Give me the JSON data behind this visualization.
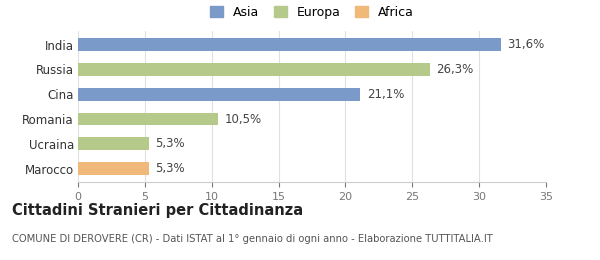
{
  "categories": [
    "Marocco",
    "Ucraina",
    "Romania",
    "Cina",
    "Russia",
    "India"
  ],
  "values": [
    5.3,
    5.3,
    10.5,
    21.1,
    26.3,
    31.6
  ],
  "labels": [
    "5,3%",
    "5,3%",
    "10,5%",
    "21,1%",
    "26,3%",
    "31,6%"
  ],
  "colors": [
    "#f0b97a",
    "#b5c98a",
    "#b5c98a",
    "#7a9ac9",
    "#b5c98a",
    "#7a9ac9"
  ],
  "legend": [
    {
      "label": "Asia",
      "color": "#7a9ac9"
    },
    {
      "label": "Europa",
      "color": "#b5c98a"
    },
    {
      "label": "Africa",
      "color": "#f0b97a"
    }
  ],
  "xlim": [
    0,
    35
  ],
  "xticks": [
    0,
    5,
    10,
    15,
    20,
    25,
    30,
    35
  ],
  "title": "Cittadini Stranieri per Cittadinanza",
  "subtitle": "COMUNE DI DEROVERE (CR) - Dati ISTAT al 1° gennaio di ogni anno - Elaborazione TUTTITALIA.IT",
  "background_color": "#ffffff",
  "grid_color": "#e0e0e0",
  "bar_height": 0.52,
  "label_fontsize": 8.5,
  "tick_fontsize": 8,
  "ytick_fontsize": 8.5,
  "title_fontsize": 10.5,
  "subtitle_fontsize": 7.2,
  "legend_fontsize": 9
}
